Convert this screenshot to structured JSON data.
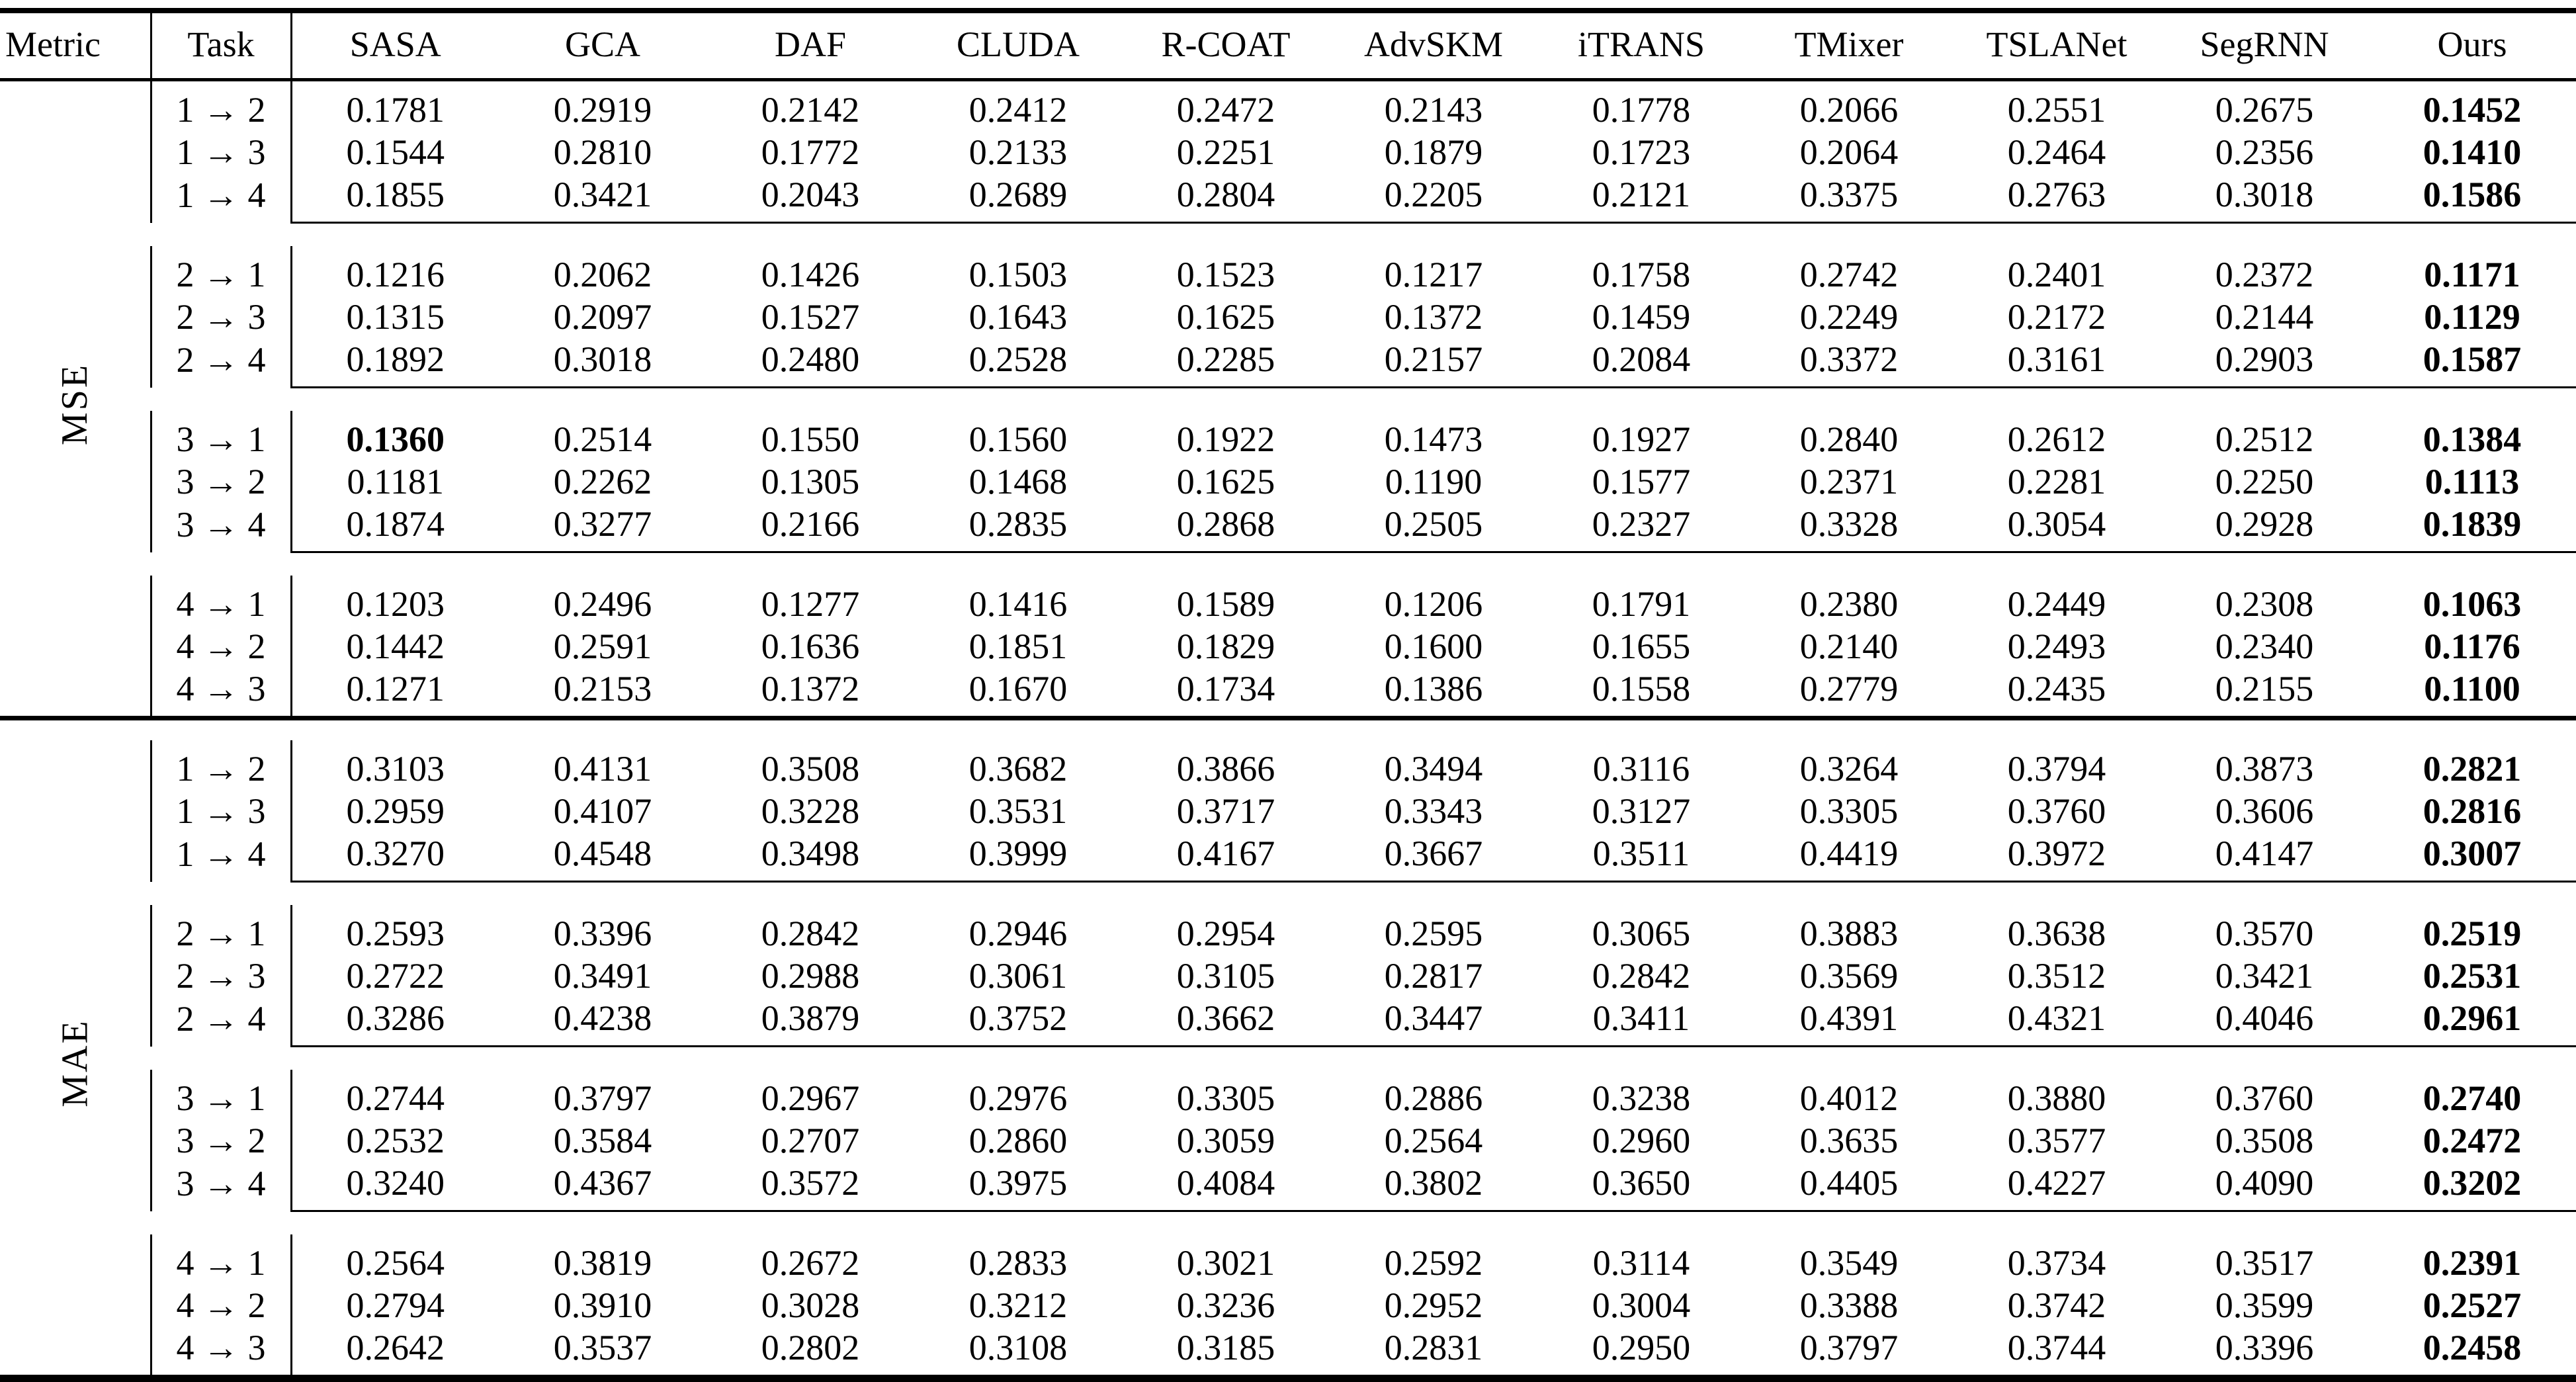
{
  "colors": {
    "text": "#000000",
    "background": "#ffffff",
    "rule": "#000000"
  },
  "table": {
    "headers": [
      "Metric",
      "Task",
      "SASA",
      "GCA",
      "DAF",
      "CLUDA",
      "R-COAT",
      "AdvSKM",
      "iTRANS",
      "TMixer",
      "TSLANet",
      "SegRNN",
      "Ours"
    ],
    "sections": [
      {
        "metric": "MSE",
        "groups": [
          {
            "rows": [
              {
                "task": "1 → 2",
                "values": [
                  "0.1781",
                  "0.2919",
                  "0.2142",
                  "0.2412",
                  "0.2472",
                  "0.2143",
                  "0.1778",
                  "0.2066",
                  "0.2551",
                  "0.2675",
                  "0.1452"
                ],
                "bold": [
                  10
                ]
              },
              {
                "task": "1 → 3",
                "values": [
                  "0.1544",
                  "0.2810",
                  "0.1772",
                  "0.2133",
                  "0.2251",
                  "0.1879",
                  "0.1723",
                  "0.2064",
                  "0.2464",
                  "0.2356",
                  "0.1410"
                ],
                "bold": [
                  10
                ]
              },
              {
                "task": "1 → 4",
                "values": [
                  "0.1855",
                  "0.3421",
                  "0.2043",
                  "0.2689",
                  "0.2804",
                  "0.2205",
                  "0.2121",
                  "0.3375",
                  "0.2763",
                  "0.3018",
                  "0.1586"
                ],
                "bold": [
                  10
                ]
              }
            ]
          },
          {
            "rows": [
              {
                "task": "2 → 1",
                "values": [
                  "0.1216",
                  "0.2062",
                  "0.1426",
                  "0.1503",
                  "0.1523",
                  "0.1217",
                  "0.1758",
                  "0.2742",
                  "0.2401",
                  "0.2372",
                  "0.1171"
                ],
                "bold": [
                  10
                ]
              },
              {
                "task": "2 → 3",
                "values": [
                  "0.1315",
                  "0.2097",
                  "0.1527",
                  "0.1643",
                  "0.1625",
                  "0.1372",
                  "0.1459",
                  "0.2249",
                  "0.2172",
                  "0.2144",
                  "0.1129"
                ],
                "bold": [
                  10
                ]
              },
              {
                "task": "2 → 4",
                "values": [
                  "0.1892",
                  "0.3018",
                  "0.2480",
                  "0.2528",
                  "0.2285",
                  "0.2157",
                  "0.2084",
                  "0.3372",
                  "0.3161",
                  "0.2903",
                  "0.1587"
                ],
                "bold": [
                  10
                ]
              }
            ]
          },
          {
            "rows": [
              {
                "task": "3 → 1",
                "values": [
                  "0.1360",
                  "0.2514",
                  "0.1550",
                  "0.1560",
                  "0.1922",
                  "0.1473",
                  "0.1927",
                  "0.2840",
                  "0.2612",
                  "0.2512",
                  "0.1384"
                ],
                "bold": [
                  0,
                  10
                ]
              },
              {
                "task": "3 → 2",
                "values": [
                  "0.1181",
                  "0.2262",
                  "0.1305",
                  "0.1468",
                  "0.1625",
                  "0.1190",
                  "0.1577",
                  "0.2371",
                  "0.2281",
                  "0.2250",
                  "0.1113"
                ],
                "bold": [
                  10
                ]
              },
              {
                "task": "3 → 4",
                "values": [
                  "0.1874",
                  "0.3277",
                  "0.2166",
                  "0.2835",
                  "0.2868",
                  "0.2505",
                  "0.2327",
                  "0.3328",
                  "0.3054",
                  "0.2928",
                  "0.1839"
                ],
                "bold": [
                  10
                ]
              }
            ]
          },
          {
            "rows": [
              {
                "task": "4 → 1",
                "values": [
                  "0.1203",
                  "0.2496",
                  "0.1277",
                  "0.1416",
                  "0.1589",
                  "0.1206",
                  "0.1791",
                  "0.2380",
                  "0.2449",
                  "0.2308",
                  "0.1063"
                ],
                "bold": [
                  10
                ]
              },
              {
                "task": "4 → 2",
                "values": [
                  "0.1442",
                  "0.2591",
                  "0.1636",
                  "0.1851",
                  "0.1829",
                  "0.1600",
                  "0.1655",
                  "0.2140",
                  "0.2493",
                  "0.2340",
                  "0.1176"
                ],
                "bold": [
                  10
                ]
              },
              {
                "task": "4 → 3",
                "values": [
                  "0.1271",
                  "0.2153",
                  "0.1372",
                  "0.1670",
                  "0.1734",
                  "0.1386",
                  "0.1558",
                  "0.2779",
                  "0.2435",
                  "0.2155",
                  "0.1100"
                ],
                "bold": [
                  10
                ]
              }
            ]
          }
        ]
      },
      {
        "metric": "MAE",
        "groups": [
          {
            "rows": [
              {
                "task": "1 → 2",
                "values": [
                  "0.3103",
                  "0.4131",
                  "0.3508",
                  "0.3682",
                  "0.3866",
                  "0.3494",
                  "0.3116",
                  "0.3264",
                  "0.3794",
                  "0.3873",
                  "0.2821"
                ],
                "bold": [
                  10
                ]
              },
              {
                "task": "1 → 3",
                "values": [
                  "0.2959",
                  "0.4107",
                  "0.3228",
                  "0.3531",
                  "0.3717",
                  "0.3343",
                  "0.3127",
                  "0.3305",
                  "0.3760",
                  "0.3606",
                  "0.2816"
                ],
                "bold": [
                  10
                ]
              },
              {
                "task": "1 → 4",
                "values": [
                  "0.3270",
                  "0.4548",
                  "0.3498",
                  "0.3999",
                  "0.4167",
                  "0.3667",
                  "0.3511",
                  "0.4419",
                  "0.3972",
                  "0.4147",
                  "0.3007"
                ],
                "bold": [
                  10
                ]
              }
            ]
          },
          {
            "rows": [
              {
                "task": "2 → 1",
                "values": [
                  "0.2593",
                  "0.3396",
                  "0.2842",
                  "0.2946",
                  "0.2954",
                  "0.2595",
                  "0.3065",
                  "0.3883",
                  "0.3638",
                  "0.3570",
                  "0.2519"
                ],
                "bold": [
                  10
                ]
              },
              {
                "task": "2 → 3",
                "values": [
                  "0.2722",
                  "0.3491",
                  "0.2988",
                  "0.3061",
                  "0.3105",
                  "0.2817",
                  "0.2842",
                  "0.3569",
                  "0.3512",
                  "0.3421",
                  "0.2531"
                ],
                "bold": [
                  10
                ]
              },
              {
                "task": "2 → 4",
                "values": [
                  "0.3286",
                  "0.4238",
                  "0.3879",
                  "0.3752",
                  "0.3662",
                  "0.3447",
                  "0.3411",
                  "0.4391",
                  "0.4321",
                  "0.4046",
                  "0.2961"
                ],
                "bold": [
                  10
                ]
              }
            ]
          },
          {
            "rows": [
              {
                "task": "3 → 1",
                "values": [
                  "0.2744",
                  "0.3797",
                  "0.2967",
                  "0.2976",
                  "0.3305",
                  "0.2886",
                  "0.3238",
                  "0.4012",
                  "0.3880",
                  "0.3760",
                  "0.2740"
                ],
                "bold": [
                  10
                ]
              },
              {
                "task": "3 → 2",
                "values": [
                  "0.2532",
                  "0.3584",
                  "0.2707",
                  "0.2860",
                  "0.3059",
                  "0.2564",
                  "0.2960",
                  "0.3635",
                  "0.3577",
                  "0.3508",
                  "0.2472"
                ],
                "bold": [
                  10
                ]
              },
              {
                "task": "3 → 4",
                "values": [
                  "0.3240",
                  "0.4367",
                  "0.3572",
                  "0.3975",
                  "0.4084",
                  "0.3802",
                  "0.3650",
                  "0.4405",
                  "0.4227",
                  "0.4090",
                  "0.3202"
                ],
                "bold": [
                  10
                ]
              }
            ]
          },
          {
            "rows": [
              {
                "task": "4 → 1",
                "values": [
                  "0.2564",
                  "0.3819",
                  "0.2672",
                  "0.2833",
                  "0.3021",
                  "0.2592",
                  "0.3114",
                  "0.3549",
                  "0.3734",
                  "0.3517",
                  "0.2391"
                ],
                "bold": [
                  10
                ]
              },
              {
                "task": "4 → 2",
                "values": [
                  "0.2794",
                  "0.3910",
                  "0.3028",
                  "0.3212",
                  "0.3236",
                  "0.2952",
                  "0.3004",
                  "0.3388",
                  "0.3742",
                  "0.3599",
                  "0.2527"
                ],
                "bold": [
                  10
                ]
              },
              {
                "task": "4 → 3",
                "values": [
                  "0.2642",
                  "0.3537",
                  "0.2802",
                  "0.3108",
                  "0.3185",
                  "0.2831",
                  "0.2950",
                  "0.3797",
                  "0.3744",
                  "0.3396",
                  "0.2458"
                ],
                "bold": [
                  10
                ]
              }
            ]
          }
        ]
      }
    ]
  }
}
